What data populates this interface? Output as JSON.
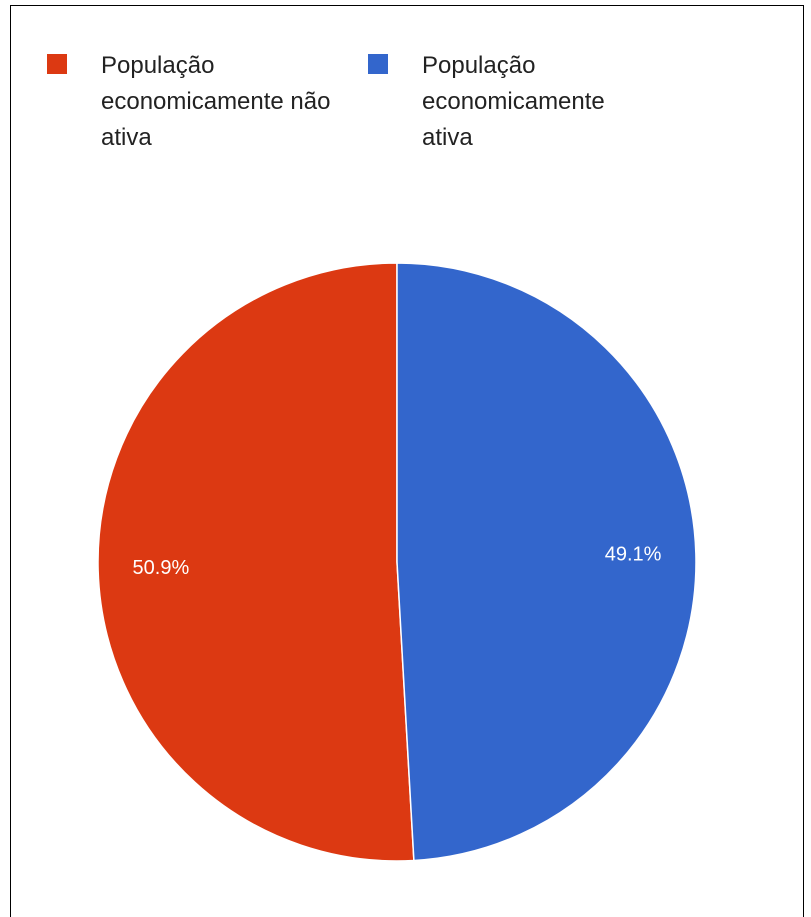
{
  "chart_data": {
    "type": "pie",
    "categories": [
      "População economicamente não ativa",
      "População economicamente ativa"
    ],
    "values": [
      50.9,
      49.1
    ],
    "value_labels": [
      "50.9%",
      "49.1%"
    ],
    "colors": [
      "#dc3912",
      "#3366cc"
    ]
  }
}
